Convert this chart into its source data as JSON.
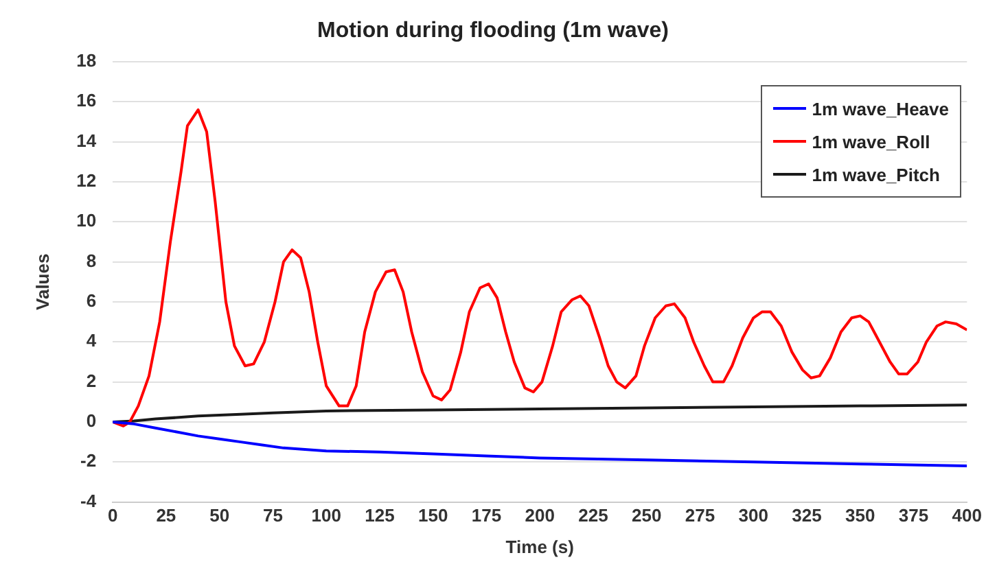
{
  "chart_data": {
    "type": "line",
    "title": "Motion during flooding (1m wave)",
    "xlabel": "Time (s)",
    "ylabel": "Values",
    "xlim": [
      0,
      400
    ],
    "xticks": [
      0,
      25,
      50,
      75,
      100,
      125,
      150,
      175,
      200,
      225,
      250,
      275,
      300,
      325,
      350,
      375,
      400
    ],
    "ylim": [
      -4,
      18
    ],
    "yticks": [
      -4,
      -2,
      0,
      2,
      4,
      6,
      8,
      10,
      12,
      14,
      16,
      18
    ],
    "grid": "y",
    "legend": "top right",
    "marker": "none",
    "line_style": "solid",
    "series": [
      {
        "name": "1m wave_Heave",
        "color": "#0000ff",
        "x": [
          0,
          10,
          20,
          30,
          40,
          50,
          60,
          70,
          80,
          100,
          125,
          150,
          175,
          200,
          250,
          300,
          350,
          400
        ],
        "values": [
          0,
          -0.1,
          -0.3,
          -0.5,
          -0.7,
          -0.85,
          -1.0,
          -1.15,
          -1.3,
          -1.45,
          -1.5,
          -1.6,
          -1.7,
          -1.8,
          -1.9,
          -2.0,
          -2.1,
          -2.2
        ]
      },
      {
        "name": "1m wave_Roll",
        "color": "#ff0000",
        "x": [
          0,
          5,
          8,
          12,
          17,
          22,
          27,
          32,
          35,
          40,
          44,
          48,
          53,
          57,
          62,
          66,
          71,
          76,
          80,
          84,
          88,
          92,
          96,
          100,
          106,
          110,
          114,
          118,
          123,
          128,
          132,
          136,
          140,
          145,
          150,
          154,
          158,
          163,
          167,
          172,
          176,
          180,
          184,
          188,
          193,
          197,
          201,
          206,
          210,
          215,
          219,
          223,
          228,
          232,
          236,
          240,
          245,
          249,
          254,
          259,
          263,
          268,
          272,
          277,
          281,
          286,
          290,
          295,
          300,
          304,
          308,
          313,
          318,
          323,
          327,
          331,
          336,
          341,
          346,
          350,
          354,
          359,
          364,
          368,
          372,
          377,
          381,
          386,
          390,
          395,
          400
        ],
        "values": [
          0,
          -0.2,
          0,
          0.8,
          2.3,
          5,
          9,
          12.5,
          14.8,
          15.6,
          14.5,
          11,
          6,
          3.8,
          2.8,
          2.9,
          4,
          6,
          8,
          8.6,
          8.2,
          6.5,
          4,
          1.8,
          0.8,
          0.8,
          1.8,
          4.5,
          6.5,
          7.5,
          7.6,
          6.5,
          4.5,
          2.5,
          1.3,
          1.1,
          1.6,
          3.5,
          5.5,
          6.7,
          6.9,
          6.2,
          4.5,
          3,
          1.7,
          1.5,
          2,
          3.8,
          5.5,
          6.1,
          6.3,
          5.8,
          4.2,
          2.8,
          2,
          1.7,
          2.3,
          3.8,
          5.2,
          5.8,
          5.9,
          5.2,
          4,
          2.8,
          2,
          2,
          2.8,
          4.2,
          5.2,
          5.5,
          5.5,
          4.8,
          3.5,
          2.6,
          2.2,
          2.3,
          3.2,
          4.5,
          5.2,
          5.3,
          5,
          4,
          3,
          2.4,
          2.4,
          3,
          4,
          4.8,
          5,
          4.9,
          4.6
        ]
      },
      {
        "name": "1m wave_Pitch",
        "color": "#1a1a1a",
        "x": [
          0,
          10,
          20,
          30,
          40,
          60,
          75,
          100,
          150,
          200,
          250,
          300,
          350,
          400
        ],
        "values": [
          0,
          0.05,
          0.15,
          0.22,
          0.3,
          0.38,
          0.45,
          0.55,
          0.6,
          0.65,
          0.7,
          0.75,
          0.8,
          0.85
        ]
      }
    ]
  }
}
